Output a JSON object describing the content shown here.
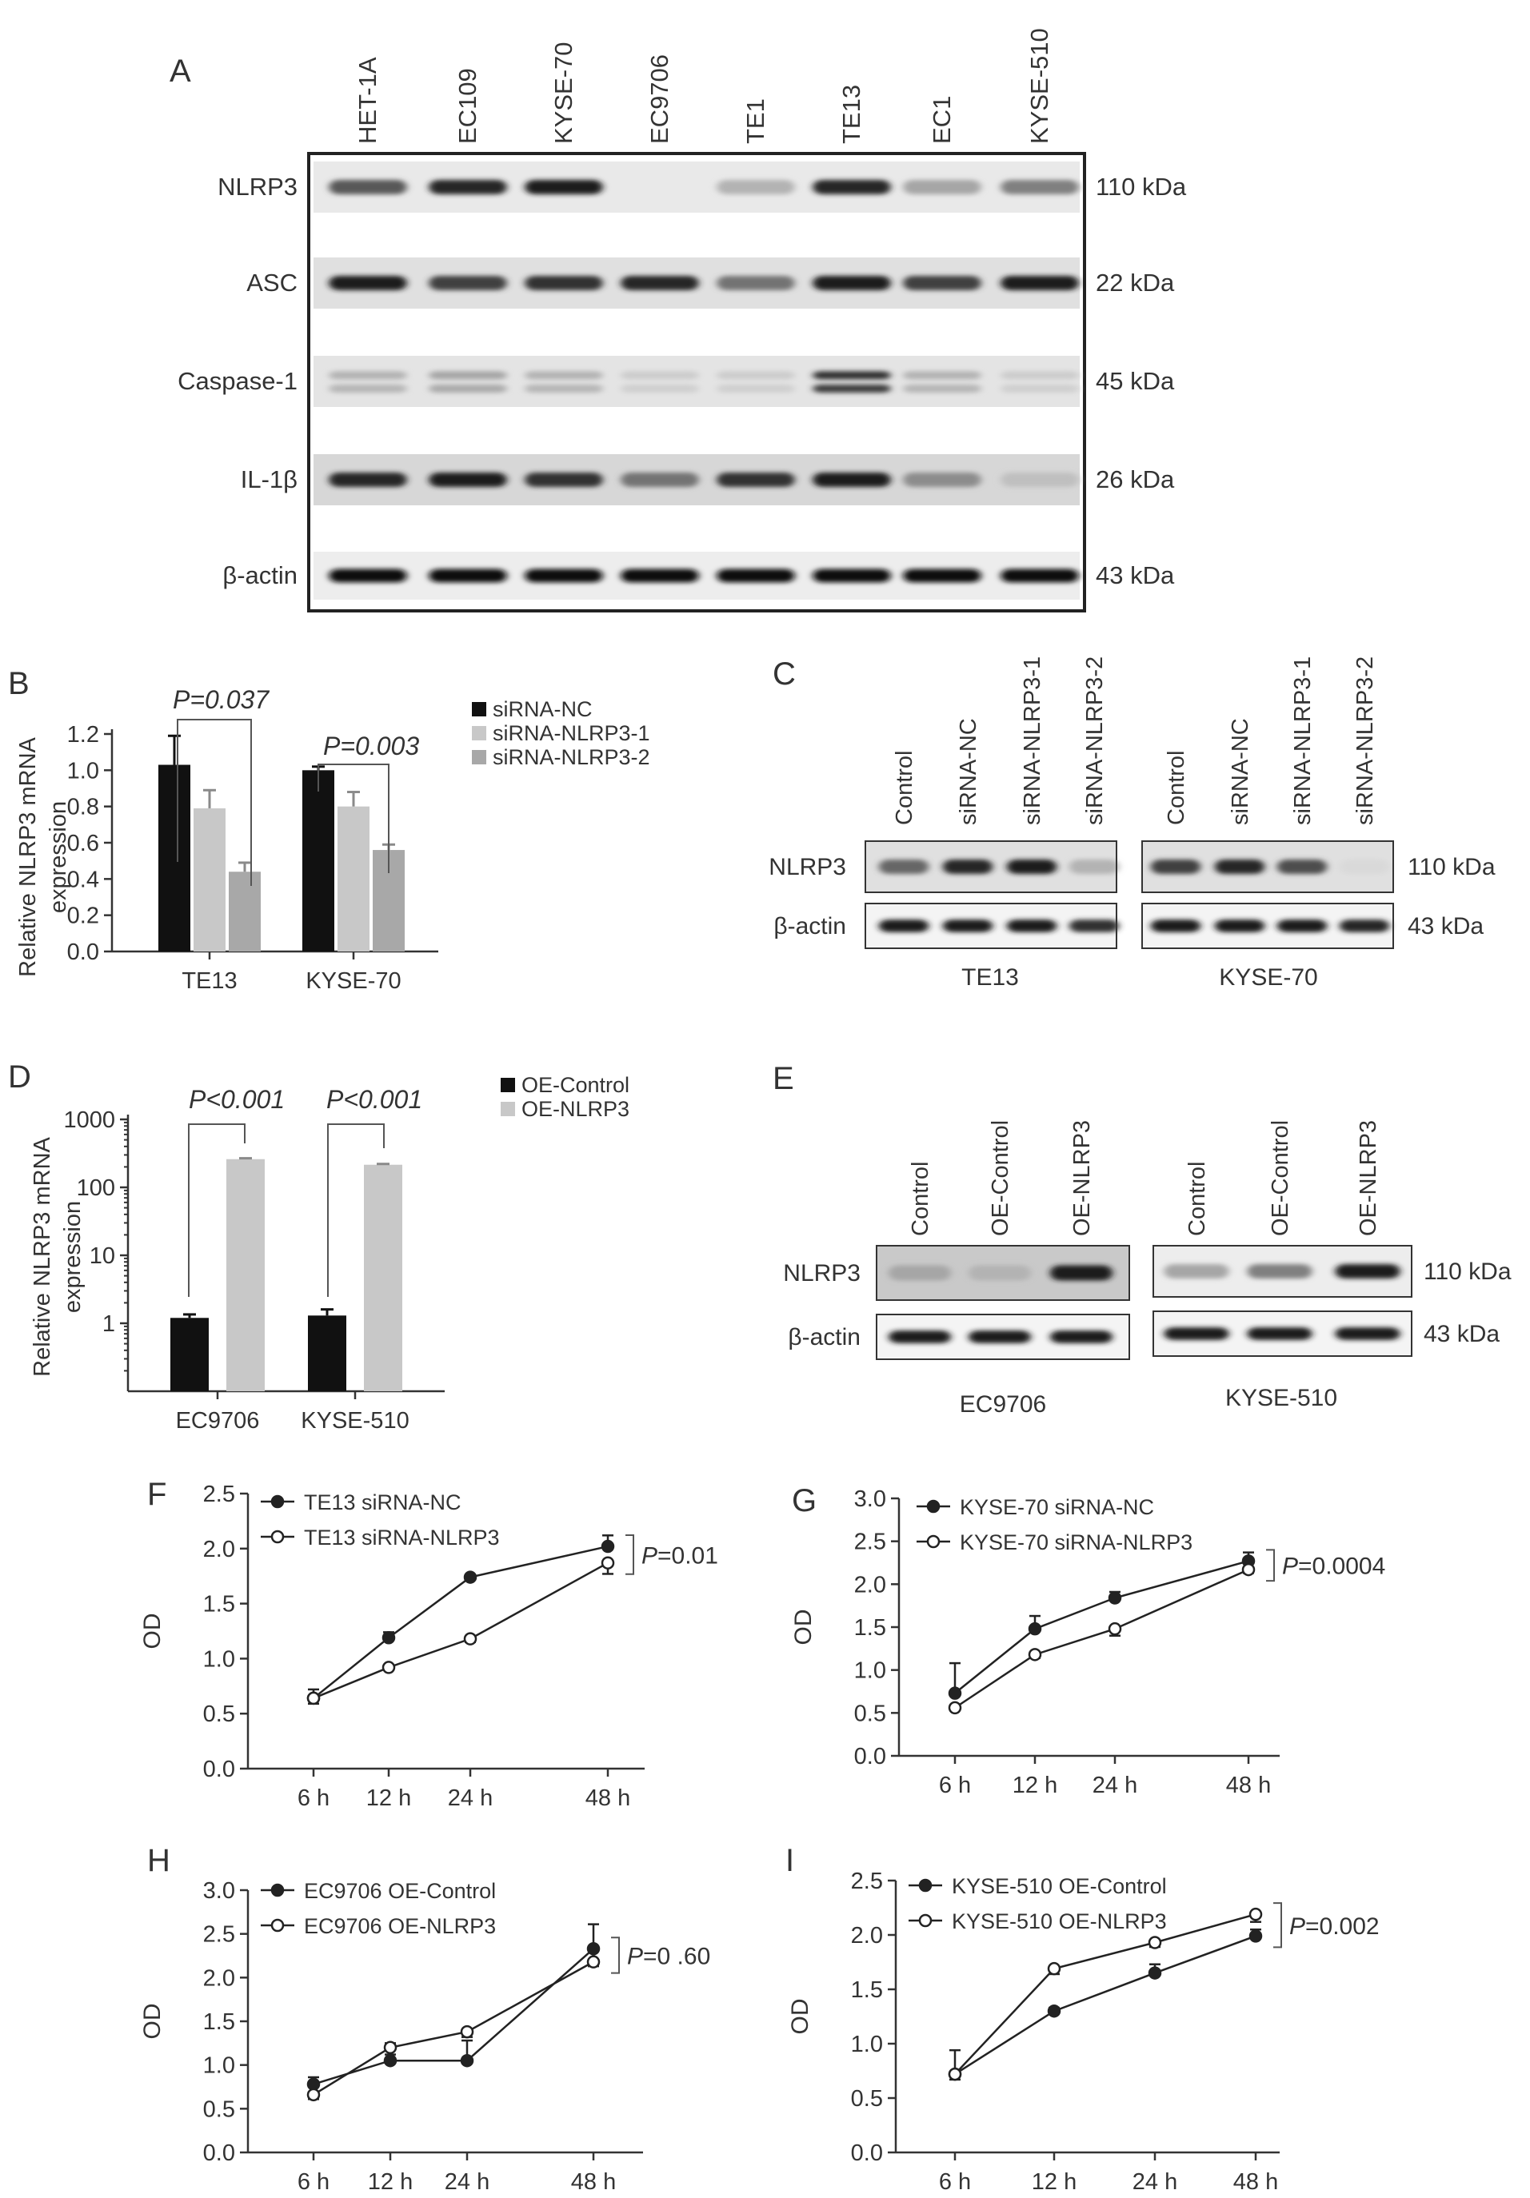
{
  "panels": {
    "A": {
      "letter": "A",
      "lanes": [
        "HET-1A",
        "EC109",
        "KYSE-70",
        "EC9706",
        "TE1",
        "TE13",
        "EC1",
        "KYSE-510"
      ],
      "rows": [
        {
          "label": "NLRP3",
          "kda": "110 kDa",
          "intensity": [
            0.65,
            0.85,
            0.9,
            0.0,
            0.3,
            0.85,
            0.35,
            0.5
          ],
          "background": 0.25,
          "doublet": false
        },
        {
          "label": "ASC",
          "kda": "22 kDa",
          "intensity": [
            0.9,
            0.75,
            0.8,
            0.85,
            0.55,
            0.9,
            0.75,
            0.9
          ],
          "background": 0.35,
          "doublet": false
        },
        {
          "label": "Caspase-1",
          "kda": "45 kDa",
          "intensity": [
            0.3,
            0.35,
            0.3,
            0.2,
            0.2,
            0.8,
            0.3,
            0.2
          ],
          "background": 0.3,
          "doublet": true
        },
        {
          "label": "IL-1β",
          "kda": "26 kDa",
          "intensity": [
            0.85,
            0.9,
            0.8,
            0.55,
            0.8,
            0.9,
            0.45,
            0.25
          ],
          "background": 0.45,
          "doublet": false
        },
        {
          "label": "β-actin",
          "kda": "43 kDa",
          "intensity": [
            0.95,
            0.95,
            0.95,
            0.95,
            0.95,
            0.95,
            0.95,
            0.95
          ],
          "background": 0.2,
          "doublet": false
        }
      ]
    },
    "B": {
      "letter": "B",
      "ylabel_line1": "Relative NLRP3 mRNA",
      "ylabel_line2": "expression",
      "pvals": [
        "P=0.037",
        "P=0.003"
      ]
    },
    "C": {
      "letter": "C",
      "lanes": [
        "Control",
        "siRNA-NC",
        "siRNA-NLRP3-1",
        "siRNA-NLRP3-2"
      ],
      "groups": [
        "TE13",
        "KYSE-70"
      ],
      "rows": [
        {
          "label": "NLRP3",
          "kda": "110 kDa",
          "intensity": [
            [
              0.6,
              0.85,
              0.9,
              0.3
            ],
            [
              0.75,
              0.85,
              0.7,
              0.15
            ]
          ]
        },
        {
          "label": "β-actin",
          "kda": "43 kDa",
          "intensity": [
            [
              0.9,
              0.9,
              0.9,
              0.8
            ],
            [
              0.9,
              0.9,
              0.9,
              0.85
            ]
          ]
        }
      ]
    },
    "D": {
      "letter": "D",
      "ylabel_line1": "Relative NLRP3 mRNA",
      "ylabel_line2": "expression",
      "pvals": [
        "P<0.001",
        "P<0.001"
      ]
    },
    "E": {
      "letter": "E",
      "lanes": [
        "Control",
        "OE-Control",
        "OE-NLRP3"
      ],
      "groups": [
        "EC9706",
        "KYSE-510"
      ],
      "rows": [
        {
          "label": "NLRP3",
          "kda": "110 kDa",
          "intensity": [
            [
              0.35,
              0.3,
              0.9
            ],
            [
              0.35,
              0.5,
              0.9
            ]
          ]
        },
        {
          "label": "β-actin",
          "kda": "43 kDa",
          "intensity": [
            [
              0.9,
              0.9,
              0.9
            ],
            [
              0.9,
              0.9,
              0.9
            ]
          ]
        }
      ]
    },
    "F": {
      "letter": "F",
      "pval_prefix": "P",
      "pval_suffix": "=0.01"
    },
    "G": {
      "letter": "G",
      "pval_prefix": "P",
      "pval_suffix": "=0.0004"
    },
    "H": {
      "letter": "H",
      "pval_prefix": "P",
      "pval_suffix": "=0 .60"
    },
    "I": {
      "letter": "I",
      "pval_prefix": "P",
      "pval_suffix": "=0.002"
    }
  },
  "chart_data": [
    {
      "panel": "B",
      "type": "bar",
      "categories": [
        "TE13",
        "KYSE-70"
      ],
      "series": [
        {
          "name": "siRNA-NC",
          "values": [
            1.03,
            1.0
          ],
          "errors": [
            0.16,
            0.02
          ],
          "color": "#111111"
        },
        {
          "name": "siRNA-NLRP3-1",
          "values": [
            0.79,
            0.8
          ],
          "errors": [
            0.1,
            0.08
          ],
          "color": "#c8c8c8"
        },
        {
          "name": "siRNA-NLRP3-2",
          "values": [
            0.44,
            0.56
          ],
          "errors": [
            0.05,
            0.03
          ],
          "color": "#a8a8a8"
        }
      ],
      "ylabel": "Relative NLRP3 mRNA expression",
      "ylim": [
        0,
        1.2
      ],
      "yticks": [
        "0.0",
        "0.2",
        "0.4",
        "0.6",
        "0.8",
        "1.0",
        "1.2"
      ],
      "legend": "top-right"
    },
    {
      "panel": "D",
      "type": "bar",
      "categories": [
        "EC9706",
        "KYSE-510"
      ],
      "series": [
        {
          "name": "OE-Control",
          "values": [
            1.2,
            1.3
          ],
          "errors": [
            0.15,
            0.3
          ],
          "color": "#111111"
        },
        {
          "name": "OE-NLRP3",
          "values": [
            260,
            215
          ],
          "errors": [
            8,
            6
          ],
          "color": "#c8c8c8"
        }
      ],
      "ylabel": "Relative NLRP3 mRNA expression",
      "yscale": "log",
      "ylim": [
        0.1,
        1000
      ],
      "yticks": [
        "1",
        "10",
        "100",
        "1000"
      ],
      "legend": "top-right"
    },
    {
      "panel": "F",
      "type": "line",
      "x": [
        "6 h",
        "12 h",
        "24 h",
        "48 h"
      ],
      "series": [
        {
          "name": "TE13 siRNA-NC",
          "values": [
            0.64,
            1.19,
            1.74,
            2.02
          ],
          "errors": [
            0.08,
            0.05,
            0.02,
            0.1
          ],
          "marker": "filled"
        },
        {
          "name": "TE13 siRNA-NLRP3",
          "values": [
            0.64,
            0.92,
            1.18,
            1.87
          ],
          "errors": [
            0.05,
            0.02,
            0.03,
            0.1
          ],
          "marker": "open"
        }
      ],
      "ylabel": "OD",
      "ylim": [
        0,
        2.5
      ],
      "yticks": [
        "0.0",
        "0.5",
        "1.0",
        "1.5",
        "2.0",
        "2.5"
      ],
      "legend": "top-left"
    },
    {
      "panel": "G",
      "type": "line",
      "x": [
        "6 h",
        "12 h",
        "24 h",
        "48 h"
      ],
      "series": [
        {
          "name": "KYSE-70 siRNA-NC",
          "values": [
            0.73,
            1.48,
            1.84,
            2.27
          ],
          "errors": [
            0.35,
            0.15,
            0.07,
            0.1
          ],
          "marker": "filled"
        },
        {
          "name": "KYSE-70 siRNA-NLRP3",
          "values": [
            0.56,
            1.18,
            1.48,
            2.17
          ],
          "errors": [
            0.03,
            0.04,
            0.08,
            0.04
          ],
          "marker": "open"
        }
      ],
      "ylabel": "OD",
      "ylim": [
        0,
        3.0
      ],
      "yticks": [
        "0.0",
        "0.5",
        "1.0",
        "1.5",
        "2.0",
        "2.5",
        "3.0"
      ],
      "legend": "top-left"
    },
    {
      "panel": "H",
      "type": "line",
      "x": [
        "6 h",
        "12 h",
        "24 h",
        "48 h"
      ],
      "series": [
        {
          "name": "EC9706 OE-Control",
          "values": [
            0.78,
            1.05,
            1.05,
            2.33
          ],
          "errors": [
            0.08,
            0.2,
            0.23,
            0.28
          ],
          "marker": "filled"
        },
        {
          "name": "EC9706 OE-NLRP3",
          "values": [
            0.66,
            1.2,
            1.38,
            2.18
          ],
          "errors": [
            0.05,
            0.08,
            0.06,
            0.05
          ],
          "marker": "open"
        }
      ],
      "ylabel": "OD",
      "ylim": [
        0,
        3.0
      ],
      "yticks": [
        "0.0",
        "0.5",
        "1.0",
        "1.5",
        "2.0",
        "2.5",
        "3.0"
      ],
      "legend": "top-left"
    },
    {
      "panel": "I",
      "type": "line",
      "x": [
        "6 h",
        "12 h",
        "24 h",
        "48 h"
      ],
      "series": [
        {
          "name": "KYSE-510 OE-Control",
          "values": [
            0.72,
            1.3,
            1.65,
            1.99
          ],
          "errors": [
            0.22,
            0.03,
            0.08,
            0.06
          ],
          "marker": "filled"
        },
        {
          "name": "KYSE-510 OE-NLRP3",
          "values": [
            0.72,
            1.69,
            1.93,
            2.19
          ],
          "errors": [
            0.05,
            0.05,
            0.04,
            0.07
          ],
          "marker": "open"
        }
      ],
      "ylabel": "OD",
      "ylim": [
        0,
        2.5
      ],
      "yticks": [
        "0.0",
        "0.5",
        "1.0",
        "1.5",
        "2.0",
        "2.5"
      ],
      "legend": "top-left"
    }
  ]
}
